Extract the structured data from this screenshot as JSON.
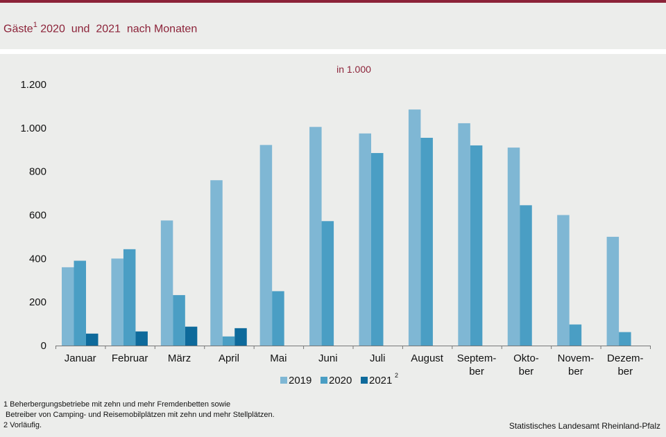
{
  "header": {
    "title_main": "Gäste",
    "title_sup": "1",
    "title_rest": " 2020  und  2021  nach Monaten"
  },
  "footnotes": {
    "line1": "1 Beherbergungsbetriebe mit zehn und mehr Fremdenbetten sowie",
    "line2": " Betreiber von Camping- und Reisemobilplätzen mit zehn und mehr Stellplätzen.",
    "line3": "2 Vorläufig."
  },
  "source": "Statistisches Landesamt Rheinland-Pfalz",
  "colors": {
    "series_2019": "#7fb7d4",
    "series_2020": "#4a9ec4",
    "series_2021": "#0e6a9b",
    "accent": "#8c2339"
  },
  "chart_data": {
    "type": "bar",
    "unit_label": "in 1.000",
    "categories": [
      [
        "Januar"
      ],
      [
        "Februar"
      ],
      [
        "März"
      ],
      [
        "April"
      ],
      [
        "Mai"
      ],
      [
        "Juni"
      ],
      [
        "Juli"
      ],
      [
        "August"
      ],
      [
        "Septem-",
        "ber"
      ],
      [
        "Okto-",
        "ber"
      ],
      [
        "Novem-",
        "ber"
      ],
      [
        "Dezem-",
        "ber"
      ]
    ],
    "series": [
      {
        "name": "2019",
        "sup": "",
        "values": [
          360,
          400,
          575,
          760,
          922,
          1005,
          975,
          1085,
          1022,
          910,
          600,
          500
        ]
      },
      {
        "name": "2020",
        "sup": "",
        "values": [
          390,
          443,
          232,
          42,
          250,
          572,
          885,
          955,
          920,
          645,
          97,
          62
        ]
      },
      {
        "name": "2021",
        "sup": "2",
        "values": [
          55,
          65,
          87,
          80,
          null,
          null,
          null,
          null,
          null,
          null,
          null,
          null
        ]
      }
    ],
    "ylim": [
      0,
      1200
    ],
    "yticks": [
      0,
      200,
      400,
      600,
      800,
      1000,
      1200
    ],
    "ytick_labels": [
      "0",
      "200",
      "400",
      "600",
      "800",
      "1.000",
      "1.200"
    ],
    "grid": false,
    "legend_position": "bottom-center"
  }
}
